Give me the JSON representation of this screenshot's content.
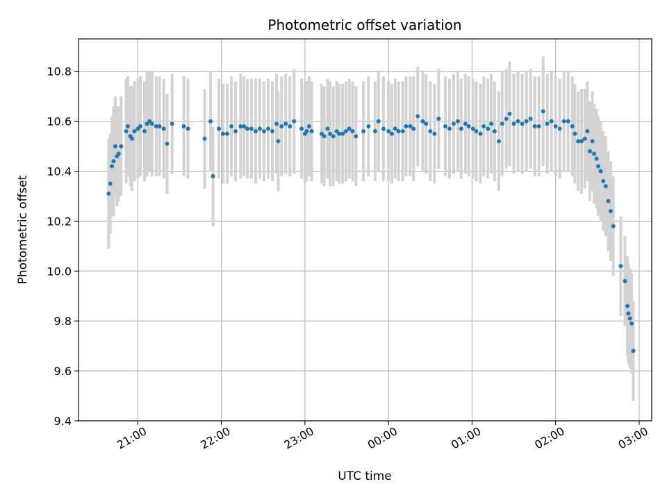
{
  "chart_data": {
    "type": "scatter",
    "title": "Photometric offset variation",
    "xlabel": "UTC time",
    "ylabel": "Photometric offset",
    "x_unit": "UTC, 20:00 base (hours; values past 24 wrap into next day)",
    "xlim": [
      20.29,
      27.15
    ],
    "ylim": [
      9.4,
      10.93
    ],
    "grid": true,
    "legend": "none",
    "x_ticks": [
      {
        "value": 21,
        "label": "21:00"
      },
      {
        "value": 22,
        "label": "22:00"
      },
      {
        "value": 23,
        "label": "23:00"
      },
      {
        "value": 24,
        "label": "00:00"
      },
      {
        "value": 25,
        "label": "01:00"
      },
      {
        "value": 26,
        "label": "02:00"
      },
      {
        "value": 27,
        "label": "03:00"
      }
    ],
    "y_ticks": [
      {
        "value": 9.4,
        "label": "9.4"
      },
      {
        "value": 9.6,
        "label": "9.6"
      },
      {
        "value": 9.8,
        "label": "9.8"
      },
      {
        "value": 10.0,
        "label": "10.0"
      },
      {
        "value": 10.2,
        "label": "10.2"
      },
      {
        "value": 10.4,
        "label": "10.4"
      },
      {
        "value": 10.6,
        "label": "10.6"
      },
      {
        "value": 10.8,
        "label": "10.8"
      }
    ],
    "colors": {
      "points": "#1f77b4",
      "errorbars": "#d3d3d3",
      "grid": "#b0b0b0"
    },
    "points": [
      [
        20.65,
        10.31,
        0.22
      ],
      [
        20.67,
        10.35,
        0.2
      ],
      [
        20.69,
        10.42,
        0.2
      ],
      [
        20.71,
        10.44,
        0.22
      ],
      [
        20.73,
        10.5,
        0.2
      ],
      [
        20.75,
        10.46,
        0.2
      ],
      [
        20.77,
        10.47,
        0.19
      ],
      [
        20.8,
        10.5,
        0.2
      ],
      [
        20.86,
        10.56,
        0.21
      ],
      [
        20.88,
        10.58,
        0.2
      ],
      [
        20.91,
        10.54,
        0.2
      ],
      [
        20.93,
        10.53,
        0.21
      ],
      [
        20.96,
        10.56,
        0.2
      ],
      [
        21.0,
        10.57,
        0.2
      ],
      [
        21.03,
        10.58,
        0.2
      ],
      [
        21.08,
        10.56,
        0.2
      ],
      [
        21.11,
        10.59,
        0.21
      ],
      [
        21.14,
        10.6,
        0.2
      ],
      [
        21.17,
        10.59,
        0.21
      ],
      [
        21.22,
        10.58,
        0.2
      ],
      [
        21.26,
        10.58,
        0.2
      ],
      [
        21.31,
        10.57,
        0.2
      ],
      [
        21.35,
        10.51,
        0.2
      ],
      [
        21.41,
        10.59,
        0.2
      ],
      [
        21.55,
        10.58,
        0.2
      ],
      [
        21.6,
        10.57,
        0.2
      ],
      [
        21.8,
        10.53,
        0.2
      ],
      [
        21.87,
        10.6,
        0.2
      ],
      [
        21.9,
        10.38,
        0.2
      ],
      [
        21.97,
        10.57,
        0.2
      ],
      [
        22.02,
        10.55,
        0.2
      ],
      [
        22.07,
        10.55,
        0.2
      ],
      [
        22.12,
        10.58,
        0.2
      ],
      [
        22.17,
        10.56,
        0.2
      ],
      [
        22.23,
        10.58,
        0.21
      ],
      [
        22.27,
        10.58,
        0.2
      ],
      [
        22.31,
        10.57,
        0.2
      ],
      [
        22.36,
        10.57,
        0.2
      ],
      [
        22.41,
        10.56,
        0.21
      ],
      [
        22.46,
        10.57,
        0.2
      ],
      [
        22.51,
        10.56,
        0.2
      ],
      [
        22.56,
        10.57,
        0.2
      ],
      [
        22.61,
        10.56,
        0.2
      ],
      [
        22.66,
        10.59,
        0.2
      ],
      [
        22.68,
        10.52,
        0.2
      ],
      [
        22.72,
        10.58,
        0.2
      ],
      [
        22.77,
        10.59,
        0.2
      ],
      [
        22.82,
        10.58,
        0.2
      ],
      [
        22.87,
        10.6,
        0.21
      ],
      [
        22.96,
        10.57,
        0.2
      ],
      [
        23.0,
        10.55,
        0.2
      ],
      [
        23.02,
        10.56,
        0.2
      ],
      [
        23.05,
        10.58,
        0.2
      ],
      [
        23.08,
        10.56,
        0.2
      ],
      [
        23.2,
        10.55,
        0.2
      ],
      [
        23.23,
        10.54,
        0.2
      ],
      [
        23.27,
        10.57,
        0.2
      ],
      [
        23.3,
        10.55,
        0.21
      ],
      [
        23.34,
        10.54,
        0.2
      ],
      [
        23.38,
        10.56,
        0.2
      ],
      [
        23.41,
        10.55,
        0.2
      ],
      [
        23.45,
        10.55,
        0.2
      ],
      [
        23.49,
        10.56,
        0.2
      ],
      [
        23.53,
        10.57,
        0.2
      ],
      [
        23.57,
        10.56,
        0.2
      ],
      [
        23.61,
        10.54,
        0.2
      ],
      [
        23.7,
        10.56,
        0.2
      ],
      [
        23.76,
        10.58,
        0.2
      ],
      [
        23.84,
        10.56,
        0.2
      ],
      [
        23.88,
        10.6,
        0.2
      ],
      [
        23.94,
        10.57,
        0.21
      ],
      [
        24.0,
        10.56,
        0.2
      ],
      [
        24.04,
        10.55,
        0.2
      ],
      [
        24.08,
        10.57,
        0.2
      ],
      [
        24.12,
        10.56,
        0.2
      ],
      [
        24.17,
        10.56,
        0.2
      ],
      [
        24.21,
        10.58,
        0.2
      ],
      [
        24.26,
        10.58,
        0.2
      ],
      [
        24.3,
        10.57,
        0.21
      ],
      [
        24.35,
        10.62,
        0.2
      ],
      [
        24.41,
        10.6,
        0.2
      ],
      [
        24.45,
        10.59,
        0.2
      ],
      [
        24.5,
        10.56,
        0.2
      ],
      [
        24.55,
        10.55,
        0.2
      ],
      [
        24.6,
        10.61,
        0.2
      ],
      [
        24.68,
        10.58,
        0.2
      ],
      [
        24.73,
        10.57,
        0.2
      ],
      [
        24.78,
        10.59,
        0.2
      ],
      [
        24.83,
        10.6,
        0.2
      ],
      [
        24.87,
        10.57,
        0.2
      ],
      [
        24.92,
        10.59,
        0.2
      ],
      [
        24.96,
        10.58,
        0.2
      ],
      [
        25.01,
        10.57,
        0.2
      ],
      [
        25.05,
        10.56,
        0.2
      ],
      [
        25.1,
        10.55,
        0.2
      ],
      [
        25.14,
        10.58,
        0.2
      ],
      [
        25.19,
        10.57,
        0.2
      ],
      [
        25.23,
        10.59,
        0.2
      ],
      [
        25.27,
        10.56,
        0.2
      ],
      [
        25.32,
        10.52,
        0.2
      ],
      [
        25.36,
        10.59,
        0.21
      ],
      [
        25.41,
        10.61,
        0.2
      ],
      [
        25.45,
        10.63,
        0.21
      ],
      [
        25.5,
        10.59,
        0.2
      ],
      [
        25.55,
        10.6,
        0.2
      ],
      [
        25.6,
        10.59,
        0.2
      ],
      [
        25.65,
        10.6,
        0.2
      ],
      [
        25.7,
        10.61,
        0.2
      ],
      [
        25.75,
        10.58,
        0.2
      ],
      [
        25.8,
        10.58,
        0.2
      ],
      [
        25.85,
        10.64,
        0.22
      ],
      [
        25.9,
        10.59,
        0.2
      ],
      [
        25.95,
        10.6,
        0.2
      ],
      [
        26.0,
        10.58,
        0.2
      ],
      [
        26.05,
        10.57,
        0.2
      ],
      [
        26.1,
        10.6,
        0.2
      ],
      [
        26.15,
        10.6,
        0.2
      ],
      [
        26.2,
        10.58,
        0.2
      ],
      [
        26.23,
        10.55,
        0.2
      ],
      [
        26.27,
        10.52,
        0.2
      ],
      [
        26.31,
        10.52,
        0.21
      ],
      [
        26.35,
        10.53,
        0.2
      ],
      [
        26.38,
        10.56,
        0.2
      ],
      [
        26.41,
        10.48,
        0.2
      ],
      [
        26.44,
        10.52,
        0.2
      ],
      [
        26.46,
        10.47,
        0.2
      ],
      [
        26.49,
        10.45,
        0.2
      ],
      [
        26.51,
        10.42,
        0.2
      ],
      [
        26.54,
        10.4,
        0.2
      ],
      [
        26.57,
        10.36,
        0.2
      ],
      [
        26.6,
        10.34,
        0.2
      ],
      [
        26.63,
        10.28,
        0.2
      ],
      [
        26.66,
        10.24,
        0.2
      ],
      [
        26.69,
        10.18,
        0.2
      ],
      [
        26.78,
        10.02,
        0.2
      ],
      [
        26.83,
        9.96,
        0.18
      ],
      [
        26.86,
        9.86,
        0.2
      ],
      [
        26.87,
        9.83,
        0.2
      ],
      [
        26.89,
        9.81,
        0.2
      ],
      [
        26.91,
        9.79,
        0.2
      ],
      [
        26.93,
        9.68,
        0.2
      ]
    ]
  }
}
